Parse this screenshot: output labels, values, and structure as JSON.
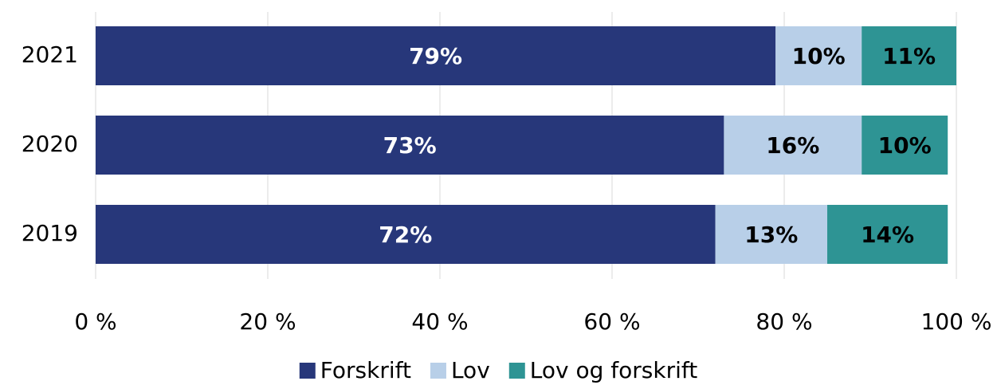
{
  "chart_data": {
    "type": "stacked-barh",
    "categories": [
      "2021",
      "2020",
      "2019"
    ],
    "series": [
      {
        "name": "Forskrift",
        "color": "#27377a",
        "values": [
          79,
          73,
          72
        ],
        "value_labels": [
          "79%",
          "73%",
          "72%"
        ]
      },
      {
        "name": "Lov",
        "color": "#b8cfe8",
        "values": [
          10,
          16,
          13
        ],
        "value_labels": [
          "10%",
          "16%",
          "13%"
        ]
      },
      {
        "name": "Lov og forskrift",
        "color": "#2e9494",
        "values": [
          11,
          10,
          14
        ],
        "value_labels": [
          "11%",
          "10%",
          "14%"
        ]
      }
    ],
    "xlim": [
      0,
      100
    ],
    "xticks": [
      {
        "value": 0,
        "label": "0 %"
      },
      {
        "value": 20,
        "label": "20 %"
      },
      {
        "value": 40,
        "label": "40 %"
      },
      {
        "value": 60,
        "label": "60 %"
      },
      {
        "value": 80,
        "label": "80 %"
      },
      {
        "value": 100,
        "label": "100 %"
      }
    ],
    "grid": true,
    "legend": "bottom"
  }
}
